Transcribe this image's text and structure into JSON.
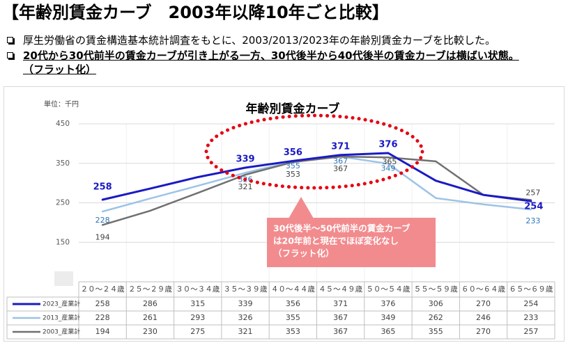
{
  "slide": {
    "title": "【年齢別賃金カーブ　2003年以降10年ごと比較】",
    "bullet_icon": "hollow-square-bullet-icon",
    "bullets": [
      {
        "text": "厚生労働省の賃金構造基本統計調査をもとに、2003/2013/2023年の年齢別賃金カーブを比較した。"
      },
      {
        "text": "20代から30代前半の賃金カーブが引き上がる一方、30代後半から40代後半の賃金カーブは横ばい状態。",
        "continuation": "（フラット化）"
      }
    ]
  },
  "chart_data": {
    "type": "line",
    "title": "年齢別賃金カーブ",
    "unit_label": "単位：千円",
    "xlabel": "",
    "ylabel": "",
    "categories": [
      "２０～２４歳",
      "２５～２９歳",
      "３０～３４歳",
      "３５～３９歳",
      "４０～４４歳",
      "４５～４９歳",
      "５０～５４歳",
      "５５～５９歳",
      "６０～６４歳",
      "６５～６９歳"
    ],
    "ylim": [
      50,
      450
    ],
    "yticks": [
      450,
      350,
      250,
      150
    ],
    "grid": true,
    "legend": "data-table",
    "series": [
      {
        "name": "2023_産業計",
        "color": "#1a1ac4",
        "label_color": "#1a1ac4",
        "values": [
          258,
          286,
          315,
          339,
          356,
          371,
          376,
          306,
          270,
          254
        ],
        "data_labels": [
          258,
          null,
          null,
          339,
          356,
          371,
          376,
          null,
          null,
          254
        ]
      },
      {
        "name": "2013_産業計",
        "color": "#9dc3e6",
        "label_color": "#2e75b6",
        "values": [
          228,
          261,
          293,
          326,
          355,
          367,
          349,
          262,
          246,
          233
        ],
        "data_labels": [
          228,
          null,
          null,
          326,
          355,
          367,
          349,
          null,
          null,
          233
        ]
      },
      {
        "name": "2003_産業計",
        "color": "#707070",
        "label_color": "#404040",
        "values": [
          194,
          230,
          275,
          321,
          353,
          367,
          365,
          355,
          270,
          257
        ],
        "data_labels": [
          194,
          null,
          null,
          321,
          353,
          367,
          365,
          null,
          null,
          257
        ]
      }
    ],
    "annotation": {
      "lines": [
        "30代後半～50代前半の賃金カーブ",
        "は20年前と現在でほぼ変化なし",
        "（フラット化）"
      ],
      "box_color": "#f28b8e",
      "text_color": "#ffffff",
      "highlight_color": "#e60012"
    }
  }
}
